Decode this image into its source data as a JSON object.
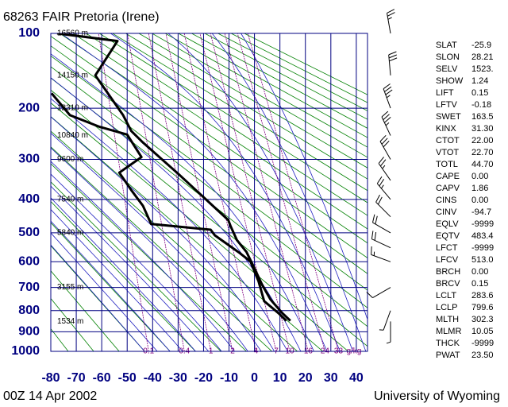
{
  "chart_data": {
    "type": "skew-t",
    "title": "68263 FAIR Pretoria (Irene)",
    "footer_left": "00Z 14 Apr 2002",
    "footer_right": "University of Wyoming",
    "xlim": [
      -80,
      44.4
    ],
    "xticks": [
      -80,
      -70,
      -60,
      -50,
      -40,
      -30,
      -20,
      -10,
      0,
      10,
      20,
      30,
      40
    ],
    "ylim": [
      1000,
      100
    ],
    "yticks": [
      100,
      200,
      300,
      400,
      500,
      600,
      700,
      800,
      900,
      1000
    ],
    "grid": true,
    "series": [
      {
        "color": "#000000",
        "pressure": [
          847,
          811,
          751,
          691,
          613,
          565,
          524,
          478,
          460,
          335,
          264,
          241,
          212,
          150,
          108,
          100
        ],
        "values": [
          14.1,
          10.9,
          6.3,
          3.1,
          -0.6,
          -3.1,
          -6.9,
          -9.4,
          -10.3,
          -29.7,
          -43.8,
          -48.4,
          -51.6,
          -62.5,
          -53.8,
          -77.5
        ]
      },
      {
        "color": "#000000",
        "pressure": [
          847,
          811,
          758,
          675,
          599,
          565,
          508,
          490,
          472,
          418,
          375,
          331,
          295,
          248,
          233,
          212,
          176
        ],
        "values": [
          12.5,
          9.4,
          3.8,
          1.6,
          -1.6,
          -6.3,
          -15.6,
          -17.2,
          -40.6,
          -43.8,
          -48.4,
          -53.1,
          -44.4,
          -50,
          -60.9,
          -72.5,
          -79.7
        ]
      }
    ],
    "heights": {
      "pressure": [
        100,
        150,
        200,
        250,
        300,
        400,
        500,
        700,
        850
      ],
      "labels": [
        "16560 m",
        "14150 m",
        "12310 m",
        "10840 m",
        "9600 m",
        "7540 m",
        "5840 m",
        "3155 m",
        "1534 m"
      ]
    },
    "mixing_ratio": {
      "values": [
        0.1,
        0.4,
        1,
        2,
        4,
        7,
        10,
        16,
        24,
        33
      ],
      "unit": "g/kg"
    },
    "winds": {
      "pressure": [
        100,
        150,
        200,
        250,
        300,
        350,
        400,
        450,
        500,
        550,
        600,
        700,
        800,
        850
      ],
      "direction": [
        350,
        355,
        340,
        335,
        330,
        325,
        320,
        315,
        300,
        295,
        290,
        240,
        200,
        180
      ],
      "speed": [
        25,
        30,
        35,
        35,
        30,
        25,
        25,
        20,
        20,
        20,
        15,
        10,
        5,
        5
      ]
    },
    "indices": {
      "names": [
        "SLAT",
        "SLON",
        "SELV",
        "SHOW",
        "LIFT",
        "LFTV",
        "SWET",
        "KINX",
        "CTOT",
        "VTOT",
        "TOTL",
        "CAPE",
        "CAPV",
        "CINS",
        "CINV",
        "EQLV",
        "EQTV",
        "LFCT",
        "LFCV",
        "BRCH",
        "BRCV",
        "LCLT",
        "LCLP",
        "MLTH",
        "MLMR",
        "THCK",
        "PWAT"
      ],
      "values": [
        "-25.9",
        "28.21",
        "1523.",
        "1.24",
        "0.15",
        "-0.18",
        "163.5",
        "31.30",
        "22.00",
        "22.70",
        "44.70",
        "0.00",
        "1.86",
        "0.00",
        "-94.7",
        "-9999",
        "483.4",
        "-9999",
        "513.0",
        "0.00",
        "0.15",
        "283.6",
        "799.6",
        "302.3",
        "10.05",
        "-9999",
        "23.50"
      ]
    }
  }
}
